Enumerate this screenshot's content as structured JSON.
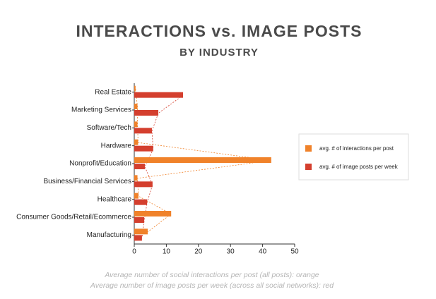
{
  "chart_data": {
    "type": "bar",
    "orientation": "horizontal",
    "title": "INTERACTIONS vs. IMAGE POSTS",
    "subtitle": "BY INDUSTRY",
    "categories": [
      "Real Estate",
      "Marketing Services",
      "Software/Tech",
      "Hardware",
      "Nonprofit/Education",
      "Business/Financial Services",
      "Healthcare",
      "Consumer Goods/Retail/Ecommerce",
      "Manufacturing"
    ],
    "series": [
      {
        "name": "avg. # of interactions per post",
        "color": "#f0822a",
        "values": [
          0.4,
          1,
          1,
          1.2,
          42.7,
          1,
          1.3,
          11.5,
          4.2
        ]
      },
      {
        "name": "avg. # of image posts per week",
        "color": "#d43f2e",
        "values": [
          15.2,
          7.5,
          5.5,
          5.9,
          3.3,
          5.7,
          4,
          3.1,
          2.4
        ]
      }
    ],
    "xlim": [
      0,
      50
    ],
    "xticks": [
      0,
      10,
      20,
      30,
      40,
      50
    ],
    "legend": "right",
    "annotations": [
      "Average number of social interactions per post (all posts): orange",
      "Average number of image posts per week (across all social networks): red"
    ]
  }
}
